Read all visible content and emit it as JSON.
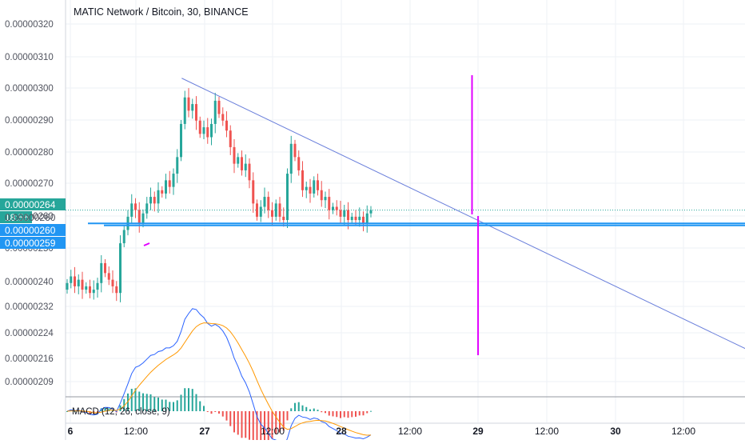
{
  "header": {
    "title": "MATIC Network / Bitcoin, 30, BINANCE"
  },
  "macd": {
    "label": "MACD (12, 26, close, 9)"
  },
  "price_badges": {
    "last": "0.00000264",
    "countdown": "18:56",
    "countdown_price": "0.00000260",
    "line1": "0.00000260",
    "line2": "0.00000259"
  },
  "colors": {
    "up": "#26a69a",
    "down": "#ef5350",
    "trendline": "#6a7fdb",
    "horizontal": "#2196f3",
    "marker": "#e100ff",
    "macd": "#2962ff",
    "signal": "#ff9800"
  },
  "chart_data": {
    "type": "candlestick",
    "title": "MATIC Network / Bitcoin, 30, BINANCE",
    "y_axis": {
      "labels": [
        "0.00000320",
        "0.00000310",
        "0.00000300",
        "0.00000290",
        "0.00000280",
        "0.00000270",
        "0.00000260",
        "0.00000250",
        "0.00000240",
        "0.00000232",
        "0.00000224",
        "0.00000216",
        "0.00000209"
      ],
      "range": [
        2.055e-06,
        3.245e-06
      ]
    },
    "x_axis": {
      "labels": [
        {
          "text": "6",
          "bold": true
        },
        {
          "text": "12:00",
          "bold": false
        },
        {
          "text": "27",
          "bold": true
        },
        {
          "text": "12:00",
          "bold": false
        },
        {
          "text": "28",
          "bold": true
        },
        {
          "text": "12:00",
          "bold": false
        },
        {
          "text": "29",
          "bold": true
        },
        {
          "text": "12:00",
          "bold": false
        },
        {
          "text": "30",
          "bold": true
        },
        {
          "text": "12:00",
          "bold": false
        }
      ]
    },
    "bar_close_prices": [
      2.42e-06,
      2.44e-06,
      2.41e-06,
      2.43e-06,
      2.4e-06,
      2.41e-06,
      2.39e-06,
      2.4e-06,
      2.42e-06,
      2.48e-06,
      2.45e-06,
      2.43e-06,
      2.41e-06,
      2.39e-06,
      2.54e-06,
      2.58e-06,
      2.62e-06,
      2.66e-06,
      2.64e-06,
      2.6e-06,
      2.63e-06,
      2.66e-06,
      2.68e-06,
      2.66e-06,
      2.7e-06,
      2.69e-06,
      2.73e-06,
      2.71e-06,
      2.75e-06,
      2.8e-06,
      2.9e-06,
      2.98e-06,
      2.94e-06,
      2.96e-06,
      2.91e-06,
      2.87e-06,
      2.89e-06,
      2.86e-06,
      2.9e-06,
      2.97e-06,
      2.93e-06,
      2.91e-06,
      2.88e-06,
      2.83e-06,
      2.78e-06,
      2.8e-06,
      2.76e-06,
      2.78e-06,
      2.73e-06,
      2.66e-06,
      2.62e-06,
      2.65e-06,
      2.68e-06,
      2.64e-06,
      2.62e-06,
      2.66e-06,
      2.62e-06,
      2.61e-06,
      2.75e-06,
      2.84e-06,
      2.8e-06,
      2.76e-06,
      2.7e-06,
      2.71e-06,
      2.69e-06,
      2.73e-06,
      2.7e-06,
      2.67e-06,
      2.68e-06,
      2.64e-06,
      2.65e-06,
      2.64e-06,
      2.62e-06,
      2.64e-06,
      2.61e-06,
      2.62e-06,
      2.61e-06,
      2.62e-06,
      2.6e-06,
      2.63e-06,
      2.64e-06
    ],
    "drawings": {
      "trendline": {
        "from": {
          "x": "26 19:30",
          "y": 3.038e-06
        },
        "to": {
          "x": "30 23:30",
          "y": 2.211e-06
        }
      },
      "horizontal_lines": [
        2.6e-06,
        2.594e-06
      ],
      "vertical_markers": [
        "29 00:00",
        "29 00:30"
      ]
    }
  }
}
